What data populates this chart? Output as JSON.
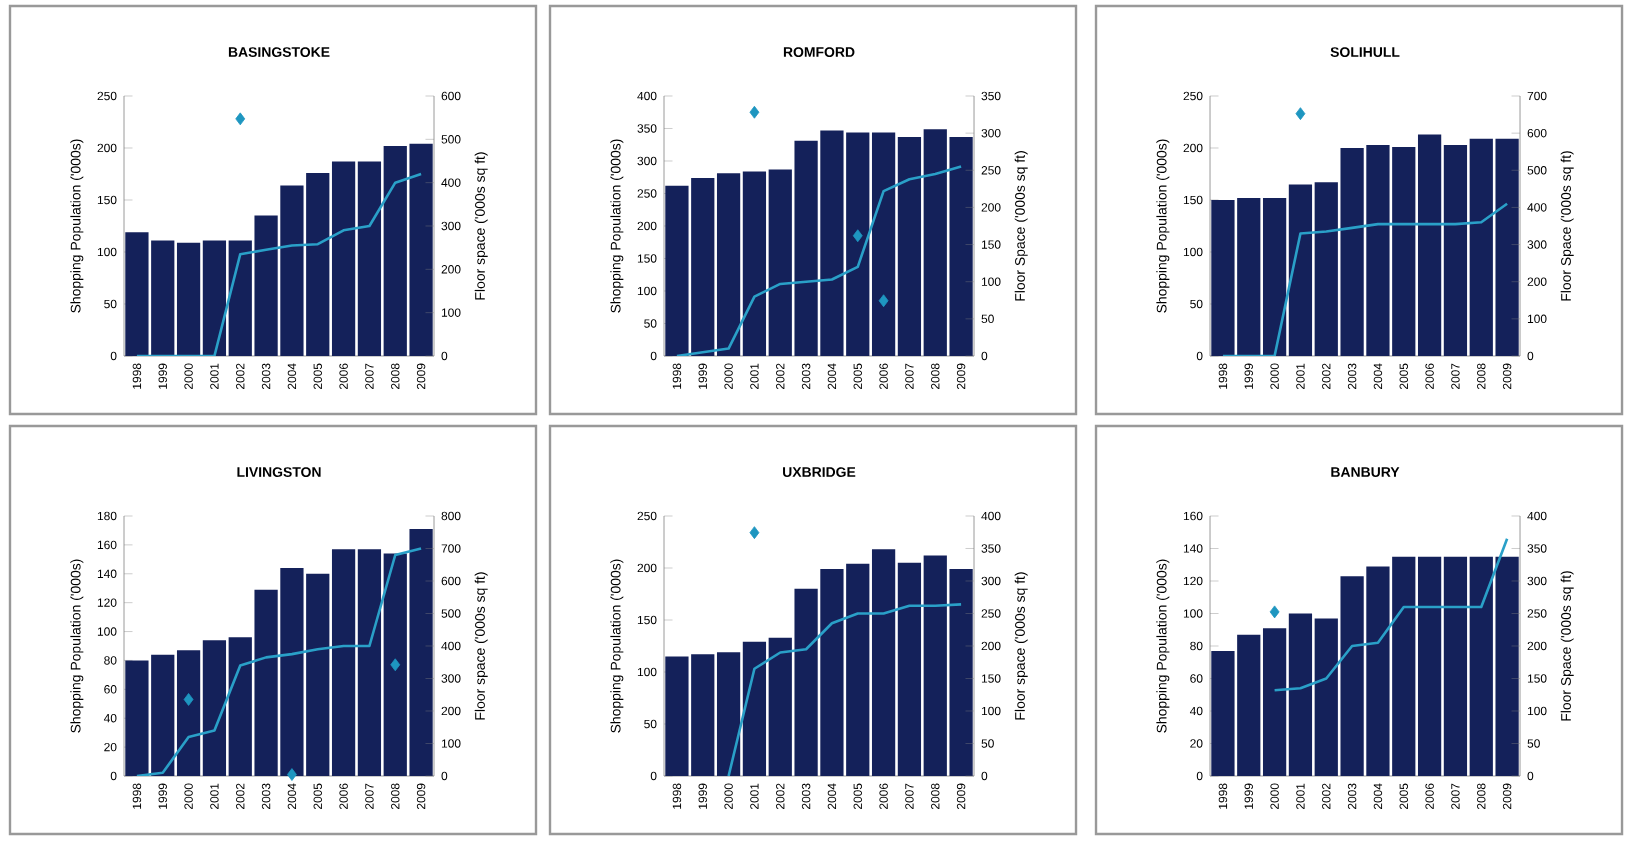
{
  "chart_data": [
    {
      "type": "bar",
      "title": "BASINGSTOKE",
      "categories": [
        "1998",
        "1999",
        "2000",
        "2001",
        "2002",
        "2003",
        "2004",
        "2005",
        "2006",
        "2007",
        "2008",
        "2009"
      ],
      "ylabel": "Shopping Population ('000s)",
      "y2label": "Floor space ('000s sq ft)",
      "ylim": [
        0,
        250
      ],
      "yticks": [
        0,
        50,
        100,
        150,
        200,
        250
      ],
      "y2lim": [
        0,
        600
      ],
      "y2ticks": [
        0,
        100,
        200,
        300,
        400,
        500,
        600
      ],
      "series": [
        {
          "color": "#14215a",
          "values": [
            119,
            111,
            109,
            111,
            111,
            135,
            164,
            176,
            187,
            187,
            202,
            204
          ]
        },
        {
          "type": "line",
          "axis": "y2",
          "color": "#2aa0c8",
          "values": [
            0,
            0,
            0,
            0,
            235,
            245,
            255,
            258,
            290,
            300,
            400,
            420
          ]
        },
        {
          "type": "scatter",
          "marker": "diamond",
          "color": "#1e96c0",
          "values": [
            null,
            null,
            null,
            null,
            228,
            null,
            null,
            null,
            null,
            null,
            null,
            null
          ]
        }
      ]
    },
    {
      "type": "bar",
      "title": "ROMFORD",
      "categories": [
        "1998",
        "1999",
        "2000",
        "2001",
        "2002",
        "2003",
        "2004",
        "2005",
        "2006",
        "2007",
        "2008",
        "2009"
      ],
      "ylabel": "Shopping Population ('000s)",
      "y2label": "Floor Space ('000s sq ft)",
      "ylim": [
        0,
        400
      ],
      "yticks": [
        0,
        50,
        100,
        150,
        200,
        250,
        300,
        350,
        400
      ],
      "y2lim": [
        0,
        350
      ],
      "y2ticks": [
        0,
        50,
        100,
        150,
        200,
        250,
        300,
        350
      ],
      "series": [
        {
          "color": "#14215a",
          "values": [
            262,
            274,
            281,
            284,
            287,
            331,
            347,
            344,
            344,
            337,
            349,
            337
          ]
        },
        {
          "type": "line",
          "axis": "y2",
          "color": "#2aa0c8",
          "values": [
            0,
            5,
            10,
            80,
            97,
            100,
            103,
            120,
            222,
            238,
            245,
            255
          ]
        },
        {
          "type": "scatter",
          "marker": "diamond",
          "color": "#1e96c0",
          "values": [
            null,
            null,
            null,
            375,
            null,
            null,
            null,
            185,
            85,
            null,
            null,
            null
          ]
        }
      ]
    },
    {
      "type": "bar",
      "title": "SOLIHULL",
      "categories": [
        "1998",
        "1999",
        "2000",
        "2001",
        "2002",
        "2003",
        "2004",
        "2005",
        "2006",
        "2007",
        "2008",
        "2009"
      ],
      "ylabel": "Shopping Population ('000s)",
      "y2label": "Floor Space ('000s sq ft)",
      "ylim": [
        0,
        250
      ],
      "yticks": [
        0,
        50,
        100,
        150,
        200,
        250
      ],
      "y2lim": [
        0,
        700
      ],
      "y2ticks": [
        0,
        100,
        200,
        300,
        400,
        500,
        600,
        700
      ],
      "series": [
        {
          "color": "#14215a",
          "values": [
            150,
            152,
            152,
            165,
            167,
            200,
            203,
            201,
            213,
            203,
            209,
            209
          ]
        },
        {
          "type": "line",
          "axis": "y2",
          "color": "#2aa0c8",
          "values": [
            0,
            0,
            0,
            330,
            335,
            345,
            355,
            355,
            355,
            355,
            360,
            410
          ]
        },
        {
          "type": "scatter",
          "marker": "diamond",
          "color": "#1e96c0",
          "values": [
            null,
            null,
            null,
            233,
            null,
            null,
            null,
            null,
            null,
            null,
            null,
            null
          ]
        }
      ]
    },
    {
      "type": "bar",
      "title": "LIVINGSTON",
      "categories": [
        "1998",
        "1999",
        "2000",
        "2001",
        "2002",
        "2003",
        "2004",
        "2005",
        "2006",
        "2007",
        "2008",
        "2009"
      ],
      "ylabel": "Shopping Population ('000s)",
      "y2label": "Floor space ('000s sq ft)",
      "ylim": [
        0,
        180
      ],
      "yticks": [
        0,
        20,
        40,
        60,
        80,
        100,
        120,
        140,
        160,
        180
      ],
      "y2lim": [
        0,
        800
      ],
      "y2ticks": [
        0,
        100,
        200,
        300,
        400,
        500,
        600,
        700,
        800
      ],
      "series": [
        {
          "color": "#14215a",
          "values": [
            80,
            84,
            87,
            94,
            96,
            129,
            144,
            140,
            157,
            157,
            154,
            171
          ]
        },
        {
          "type": "line",
          "axis": "y2",
          "color": "#2aa0c8",
          "values": [
            0,
            10,
            120,
            140,
            340,
            365,
            375,
            390,
            400,
            400,
            680,
            700
          ]
        },
        {
          "type": "scatter",
          "marker": "diamond",
          "color": "#1e96c0",
          "values": [
            null,
            null,
            53,
            null,
            null,
            null,
            1,
            null,
            null,
            null,
            77,
            null
          ]
        }
      ]
    },
    {
      "type": "bar",
      "title": "UXBRIDGE",
      "categories": [
        "1998",
        "1999",
        "2000",
        "2001",
        "2002",
        "2003",
        "2004",
        "2005",
        "2006",
        "2007",
        "2008",
        "2009"
      ],
      "ylabel": "Shopping Population ('000s)",
      "y2label": "Floor space ('000s sq ft)",
      "ylim": [
        0,
        250
      ],
      "yticks": [
        0,
        50,
        100,
        150,
        200,
        250
      ],
      "y2lim": [
        0,
        400
      ],
      "y2ticks": [
        0,
        50,
        100,
        150,
        200,
        250,
        300,
        350,
        400
      ],
      "series": [
        {
          "color": "#14215a",
          "values": [
            115,
            117,
            119,
            129,
            133,
            180,
            199,
            204,
            218,
            205,
            212,
            199
          ]
        },
        {
          "type": "line",
          "axis": "y2",
          "color": "#2aa0c8",
          "values": [
            null,
            null,
            0,
            165,
            190,
            195,
            235,
            250,
            250,
            262,
            262,
            264
          ]
        },
        {
          "type": "scatter",
          "marker": "diamond",
          "color": "#1e96c0",
          "values": [
            null,
            null,
            null,
            234,
            null,
            null,
            null,
            null,
            null,
            null,
            null,
            null
          ]
        }
      ]
    },
    {
      "type": "bar",
      "title": "BANBURY",
      "categories": [
        "1998",
        "1999",
        "2000",
        "2001",
        "2002",
        "2003",
        "2004",
        "2005",
        "2006",
        "2007",
        "2008",
        "2009"
      ],
      "ylabel": "Shopping Population ('000s)",
      "y2label": "Floor Space ('000s sq ft)",
      "ylim": [
        0,
        160
      ],
      "yticks": [
        0,
        20,
        40,
        60,
        80,
        100,
        120,
        140,
        160
      ],
      "y2lim": [
        0,
        400
      ],
      "y2ticks": [
        0,
        50,
        100,
        150,
        200,
        250,
        300,
        350,
        400
      ],
      "series": [
        {
          "color": "#14215a",
          "values": [
            77,
            87,
            91,
            100,
            97,
            123,
            129,
            135,
            135,
            135,
            135,
            135
          ]
        },
        {
          "type": "line",
          "axis": "y2",
          "color": "#2aa0c8",
          "values": [
            null,
            null,
            132,
            135,
            150,
            200,
            205,
            260,
            260,
            260,
            260,
            365
          ]
        },
        {
          "type": "scatter",
          "marker": "diamond",
          "color": "#1e96c0",
          "values": [
            null,
            null,
            101,
            null,
            null,
            null,
            null,
            null,
            null,
            null,
            null,
            null
          ]
        }
      ]
    }
  ]
}
